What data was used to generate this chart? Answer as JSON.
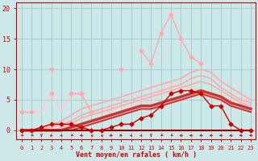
{
  "bg_color": "#cce8e8",
  "grid_color": "#aacccc",
  "xlabel": "Vent moyen/en rafales ( km/h )",
  "xlabel_color": "#cc0000",
  "tick_color": "#cc0000",
  "xmin": -0.5,
  "xmax": 23.5,
  "ymin": -1.5,
  "ymax": 21,
  "yticks": [
    0,
    5,
    10,
    15,
    20
  ],
  "xticks": [
    0,
    1,
    2,
    3,
    4,
    5,
    6,
    7,
    8,
    9,
    10,
    11,
    12,
    13,
    14,
    15,
    16,
    17,
    18,
    19,
    20,
    21,
    22,
    23
  ],
  "series": [
    {
      "x": [
        0,
        1,
        2,
        3,
        4,
        5,
        6,
        7,
        8,
        9,
        10,
        11,
        12,
        13,
        14,
        15,
        16,
        17,
        18,
        19,
        20,
        21,
        22,
        23
      ],
      "y": [
        3,
        3,
        null,
        6,
        null,
        6,
        6,
        null,
        null,
        null,
        null,
        null,
        null,
        null,
        null,
        null,
        null,
        null,
        null,
        null,
        null,
        null,
        null,
        null
      ],
      "color": "#ffaaaa",
      "lw": 1.0,
      "marker": "D",
      "ms": 2.5,
      "zorder": 3
    },
    {
      "x": [
        0,
        1,
        2,
        3,
        4,
        5,
        6,
        7,
        8,
        9,
        10,
        11,
        12,
        13,
        14,
        15,
        16,
        17,
        18,
        19,
        20,
        21,
        22,
        23
      ],
      "y": [
        null,
        null,
        null,
        10,
        null,
        6,
        6,
        3,
        null,
        null,
        10,
        null,
        13,
        11,
        16,
        19,
        15,
        12,
        11,
        null,
        null,
        null,
        null,
        null
      ],
      "color": "#ffaaaa",
      "lw": 1.0,
      "marker": "D",
      "ms": 2.5,
      "zorder": 3
    },
    {
      "x": [
        0,
        1,
        2,
        3,
        4,
        5,
        6,
        7,
        8,
        9,
        10,
        11,
        12,
        13,
        14,
        15,
        16,
        17,
        18,
        19,
        20,
        21,
        22,
        23
      ],
      "y": [
        3,
        3,
        3,
        6.5,
        3,
        6,
        6,
        3,
        3,
        3,
        4,
        3.5,
        5,
        4.5,
        6.5,
        7.5,
        7,
        7,
        6.5,
        5,
        5,
        5,
        5,
        5
      ],
      "color": "#ffcccc",
      "lw": 1.2,
      "marker": null,
      "ms": 0,
      "zorder": 2
    },
    {
      "x": [
        0,
        1,
        2,
        3,
        4,
        5,
        6,
        7,
        8,
        9,
        10,
        11,
        12,
        13,
        14,
        15,
        16,
        17,
        18,
        19,
        20,
        21,
        22,
        23
      ],
      "y": [
        0,
        0,
        0,
        1,
        1.5,
        2.5,
        3.5,
        4,
        4.5,
        5,
        5.5,
        6,
        6.5,
        7,
        7.5,
        8,
        8.5,
        9.5,
        10,
        9.5,
        8,
        7,
        6,
        5
      ],
      "color": "#ffaaaa",
      "lw": 1.2,
      "marker": null,
      "ms": 0,
      "zorder": 2
    },
    {
      "x": [
        0,
        1,
        2,
        3,
        4,
        5,
        6,
        7,
        8,
        9,
        10,
        11,
        12,
        13,
        14,
        15,
        16,
        17,
        18,
        19,
        20,
        21,
        22,
        23
      ],
      "y": [
        0,
        0,
        0,
        0.5,
        1,
        1.5,
        2.5,
        3,
        3.5,
        4,
        4.5,
        5,
        5.5,
        6,
        6.5,
        7,
        7.5,
        8.5,
        9,
        8.5,
        7,
        6,
        5,
        4.5
      ],
      "color": "#ffaaaa",
      "lw": 1.2,
      "marker": null,
      "ms": 0,
      "zorder": 2
    },
    {
      "x": [
        0,
        1,
        2,
        3,
        4,
        5,
        6,
        7,
        8,
        9,
        10,
        11,
        12,
        13,
        14,
        15,
        16,
        17,
        18,
        19,
        20,
        21,
        22,
        23
      ],
      "y": [
        0,
        0,
        0,
        0,
        0.5,
        1,
        2,
        2.5,
        3,
        3.5,
        4,
        4.5,
        5,
        5.5,
        6,
        6.5,
        7,
        7.5,
        8,
        7.5,
        6.5,
        5.5,
        4.5,
        4
      ],
      "color": "#ffaaaa",
      "lw": 1.2,
      "marker": null,
      "ms": 0,
      "zorder": 2
    },
    {
      "x": [
        0,
        1,
        2,
        3,
        4,
        5,
        6,
        7,
        8,
        9,
        10,
        11,
        12,
        13,
        14,
        15,
        16,
        17,
        18,
        19,
        20,
        21,
        22,
        23
      ],
      "y": [
        0,
        0,
        0,
        0,
        0,
        0.5,
        1,
        1.5,
        2,
        2.5,
        3,
        3.5,
        4,
        4,
        4.5,
        5,
        5.5,
        6,
        6.5,
        6,
        5.5,
        4.5,
        4,
        3.5
      ],
      "color": "#cc3333",
      "lw": 2.5,
      "marker": null,
      "ms": 0,
      "zorder": 3
    },
    {
      "x": [
        0,
        1,
        2,
        3,
        4,
        5,
        6,
        7,
        8,
        9,
        10,
        11,
        12,
        13,
        14,
        15,
        16,
        17,
        18,
        19,
        20,
        21,
        22,
        23
      ],
      "y": [
        0,
        0,
        0,
        0,
        0,
        0,
        0.5,
        1,
        1.5,
        2,
        2.5,
        3,
        3.5,
        3.5,
        4,
        4.5,
        5,
        5.5,
        6,
        5.5,
        5,
        4,
        3.5,
        3
      ],
      "color": "#cc3333",
      "lw": 1.5,
      "marker": null,
      "ms": 0,
      "zorder": 3
    },
    {
      "x": [
        0,
        1,
        2,
        3,
        4,
        5,
        6,
        7,
        8,
        9,
        10,
        11,
        12,
        13,
        14,
        15,
        16,
        17,
        18,
        19,
        20,
        21,
        22,
        23
      ],
      "y": [
        0,
        0,
        0.5,
        1,
        1,
        1,
        0.5,
        0,
        0,
        0.5,
        1,
        1,
        2,
        2.5,
        4,
        6,
        6.5,
        6.5,
        6,
        4,
        4,
        1,
        0,
        0
      ],
      "color": "#cc0000",
      "lw": 1.0,
      "marker": "D",
      "ms": 2.5,
      "zorder": 4
    },
    {
      "x": [
        0,
        1,
        2,
        3,
        4,
        5,
        6,
        7,
        8,
        9,
        10,
        11,
        12,
        13,
        14,
        15,
        16,
        17,
        18,
        19,
        20,
        21,
        22,
        23
      ],
      "y": [
        0,
        0,
        0,
        0,
        0,
        0,
        0,
        0,
        0,
        0,
        0,
        0,
        0,
        0,
        0,
        0,
        0,
        0,
        0,
        0,
        0,
        0,
        0,
        0
      ],
      "color": "#990000",
      "lw": 1.5,
      "marker": null,
      "ms": 0,
      "zorder": 3
    }
  ],
  "wind_directions": [
    225,
    225,
    180,
    200,
    160,
    225,
    270,
    315,
    315,
    90,
    115,
    160,
    160,
    180,
    225,
    225,
    270,
    270,
    270,
    270,
    270,
    270,
    270,
    270
  ]
}
